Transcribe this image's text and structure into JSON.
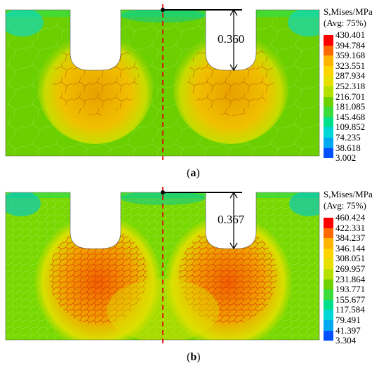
{
  "panels": [
    {
      "caption_open": "(",
      "caption_letter": "a",
      "caption_close": ")",
      "legend_title": "S,Mises/MPa",
      "legend_subtitle": "(Avg: 75%)",
      "dimension_label": "0.360",
      "legend_values": [
        "430.401",
        "394.784",
        "359.168",
        "323.551",
        "287.934",
        "252.318",
        "216.701",
        "181.085",
        "145.468",
        "109.852",
        "74.235",
        "38.618",
        "3.002"
      ],
      "legend_colors": [
        "#ff0000",
        "#ff6a00",
        "#ffb400",
        "#ffd500",
        "#e6e100",
        "#b4e100",
        "#6ed200",
        "#3cdc3c",
        "#00e08a",
        "#00d8d8",
        "#00a8f0",
        "#0050ff",
        "#0010d0"
      ]
    },
    {
      "caption_open": "(",
      "caption_letter": "b",
      "caption_close": ")",
      "legend_title": "S,Mises/MPa",
      "legend_subtitle": "(Avg: 75%)",
      "dimension_label": "0.367",
      "legend_values": [
        "460.424",
        "422.331",
        "384.237",
        "346.144",
        "308.051",
        "269.957",
        "231.864",
        "193.771",
        "155.677",
        "117.584",
        "79.491",
        "41.397",
        "3.304"
      ],
      "legend_colors": [
        "#ff0000",
        "#ff6a00",
        "#ffb400",
        "#ffd500",
        "#e6e100",
        "#b4e100",
        "#6ed200",
        "#3cdc3c",
        "#00e08a",
        "#00d8d8",
        "#00a8f0",
        "#0050ff",
        "#0010d0"
      ]
    }
  ]
}
